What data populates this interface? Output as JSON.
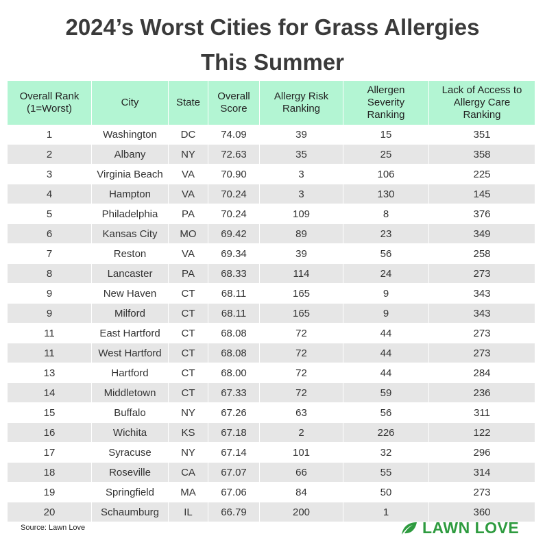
{
  "header": {
    "title_lines": [
      "2024’s Worst Cities for Grass Allergies",
      "This Summer"
    ]
  },
  "table": {
    "headers": [
      [
        "Overall Rank",
        "(1=Worst)"
      ],
      [
        "City"
      ],
      [
        "State"
      ],
      [
        "Overall",
        "Score"
      ],
      [
        "Allergy Risk",
        "Ranking"
      ],
      [
        "Allergen",
        "Severity",
        "Ranking"
      ],
      [
        "Lack of Access to",
        "Allergy Care",
        "Ranking"
      ]
    ],
    "rows": [
      [
        "1",
        "Washington",
        "DC",
        "74.09",
        "39",
        "15",
        "351"
      ],
      [
        "2",
        "Albany",
        "NY",
        "72.63",
        "35",
        "25",
        "358"
      ],
      [
        "3",
        "Virginia Beach",
        "VA",
        "70.90",
        "3",
        "106",
        "225"
      ],
      [
        "4",
        "Hampton",
        "VA",
        "70.24",
        "3",
        "130",
        "145"
      ],
      [
        "5",
        "Philadelphia",
        "PA",
        "70.24",
        "109",
        "8",
        "376"
      ],
      [
        "6",
        "Kansas City",
        "MO",
        "69.42",
        "89",
        "23",
        "349"
      ],
      [
        "7",
        "Reston",
        "VA",
        "69.34",
        "39",
        "56",
        "258"
      ],
      [
        "8",
        "Lancaster",
        "PA",
        "68.33",
        "114",
        "24",
        "273"
      ],
      [
        "9",
        "New Haven",
        "CT",
        "68.11",
        "165",
        "9",
        "343"
      ],
      [
        "9",
        "Milford",
        "CT",
        "68.11",
        "165",
        "9",
        "343"
      ],
      [
        "11",
        "East Hartford",
        "CT",
        "68.08",
        "72",
        "44",
        "273"
      ],
      [
        "11",
        "West Hartford",
        "CT",
        "68.08",
        "72",
        "44",
        "273"
      ],
      [
        "13",
        "Hartford",
        "CT",
        "68.00",
        "72",
        "44",
        "284"
      ],
      [
        "14",
        "Middletown",
        "CT",
        "67.33",
        "72",
        "59",
        "236"
      ],
      [
        "15",
        "Buffalo",
        "NY",
        "67.26",
        "63",
        "56",
        "311"
      ],
      [
        "16",
        "Wichita",
        "KS",
        "67.18",
        "2",
        "226",
        "122"
      ],
      [
        "17",
        "Syracuse",
        "NY",
        "67.14",
        "101",
        "32",
        "296"
      ],
      [
        "18",
        "Roseville",
        "CA",
        "67.07",
        "66",
        "55",
        "314"
      ],
      [
        "19",
        "Springfield",
        "MA",
        "67.06",
        "84",
        "50",
        "273"
      ],
      [
        "20",
        "Schaumburg",
        "IL",
        "66.79",
        "200",
        "1",
        "360"
      ]
    ]
  },
  "footer": {
    "source": "Source: Lawn Love",
    "brand": "LAWN LOVE"
  }
}
